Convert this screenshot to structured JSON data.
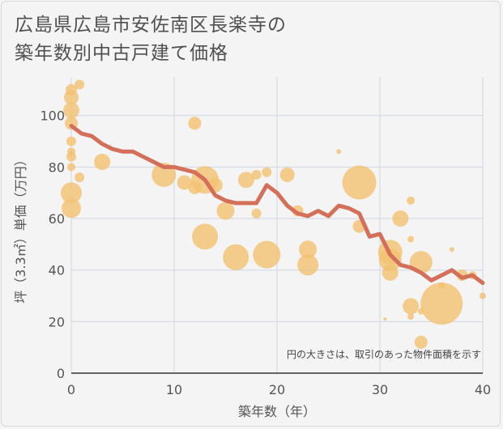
{
  "title_lines": [
    "広島県広島市安佐南区長楽寺の",
    "築年数別中古戸建て価格"
  ],
  "chart_data": {
    "type": "scatter",
    "xlabel": "築年数（年）",
    "ylabel": "坪（3.3㎡）単価（万円）",
    "xlim": [
      0,
      40
    ],
    "ylim": [
      0,
      115
    ],
    "xticks": [
      0,
      10,
      20,
      30,
      40
    ],
    "yticks": [
      0,
      20,
      40,
      60,
      80,
      100
    ],
    "grid": true,
    "note": "円の大きさは、取引のあった物件面積を示す",
    "bubble_color": "#f3c171",
    "line_color": "#d4705a",
    "bubbles": [
      {
        "x": 0,
        "y": 110,
        "s": 7
      },
      {
        "x": 0,
        "y": 107,
        "s": 9
      },
      {
        "x": 0,
        "y": 102,
        "s": 10
      },
      {
        "x": 0,
        "y": 97,
        "s": 8
      },
      {
        "x": 0,
        "y": 90,
        "s": 6
      },
      {
        "x": 0,
        "y": 86,
        "s": 5
      },
      {
        "x": 0,
        "y": 84,
        "s": 6
      },
      {
        "x": 0,
        "y": 80,
        "s": 5
      },
      {
        "x": 0,
        "y": 70,
        "s": 13
      },
      {
        "x": 0,
        "y": 64,
        "s": 12
      },
      {
        "x": 0.8,
        "y": 112,
        "s": 6
      },
      {
        "x": 0.8,
        "y": 76,
        "s": 6
      },
      {
        "x": 3,
        "y": 82,
        "s": 10
      },
      {
        "x": 9,
        "y": 77,
        "s": 15
      },
      {
        "x": 11,
        "y": 74,
        "s": 9
      },
      {
        "x": 12,
        "y": 97,
        "s": 8
      },
      {
        "x": 12,
        "y": 72,
        "s": 8
      },
      {
        "x": 13,
        "y": 75,
        "s": 17
      },
      {
        "x": 13,
        "y": 53,
        "s": 16
      },
      {
        "x": 14,
        "y": 73,
        "s": 9
      },
      {
        "x": 15,
        "y": 63,
        "s": 11
      },
      {
        "x": 16,
        "y": 45,
        "s": 16
      },
      {
        "x": 17,
        "y": 75,
        "s": 10
      },
      {
        "x": 18,
        "y": 77,
        "s": 6
      },
      {
        "x": 18,
        "y": 62,
        "s": 6
      },
      {
        "x": 19,
        "y": 78,
        "s": 6
      },
      {
        "x": 19,
        "y": 46,
        "s": 17
      },
      {
        "x": 21,
        "y": 77,
        "s": 9
      },
      {
        "x": 22,
        "y": 63,
        "s": 7
      },
      {
        "x": 23,
        "y": 48,
        "s": 11
      },
      {
        "x": 23,
        "y": 42,
        "s": 13
      },
      {
        "x": 26,
        "y": 86,
        "s": 3
      },
      {
        "x": 28,
        "y": 74,
        "s": 21
      },
      {
        "x": 28,
        "y": 57,
        "s": 8
      },
      {
        "x": 31,
        "y": 47,
        "s": 15
      },
      {
        "x": 31,
        "y": 44,
        "s": 14
      },
      {
        "x": 31,
        "y": 39,
        "s": 10
      },
      {
        "x": 32,
        "y": 60,
        "s": 10
      },
      {
        "x": 33,
        "y": 67,
        "s": 5
      },
      {
        "x": 33,
        "y": 52,
        "s": 4
      },
      {
        "x": 33,
        "y": 26,
        "s": 10
      },
      {
        "x": 33,
        "y": 22,
        "s": 4
      },
      {
        "x": 34,
        "y": 43,
        "s": 14
      },
      {
        "x": 34,
        "y": 12,
        "s": 8
      },
      {
        "x": 34,
        "y": 24,
        "s": 4
      },
      {
        "x": 36,
        "y": 27,
        "s": 26
      },
      {
        "x": 36,
        "y": 34,
        "s": 4
      },
      {
        "x": 37,
        "y": 48,
        "s": 3
      },
      {
        "x": 38,
        "y": 38,
        "s": 7
      },
      {
        "x": 39,
        "y": 38,
        "s": 5
      },
      {
        "x": 40,
        "y": 30,
        "s": 4
      },
      {
        "x": 30.5,
        "y": 21,
        "s": 2
      }
    ],
    "trend": {
      "x": [
        0,
        1,
        2,
        3,
        4,
        5,
        6,
        7,
        8,
        9,
        10,
        11,
        12,
        13,
        14,
        15,
        16,
        17,
        18,
        19,
        20,
        21,
        22,
        23,
        24,
        25,
        26,
        27,
        28,
        29,
        30,
        31,
        32,
        33,
        34,
        35,
        36,
        37,
        38,
        39,
        40
      ],
      "y": [
        96,
        93,
        92,
        89,
        87,
        86,
        86,
        84,
        82,
        80,
        80,
        79,
        78,
        75,
        69,
        67,
        66,
        66,
        66,
        73,
        70,
        65,
        62,
        61,
        63,
        61,
        65,
        64,
        62,
        53,
        54,
        46,
        42,
        41,
        39,
        36,
        38,
        40,
        37,
        38,
        35
      ]
    }
  }
}
